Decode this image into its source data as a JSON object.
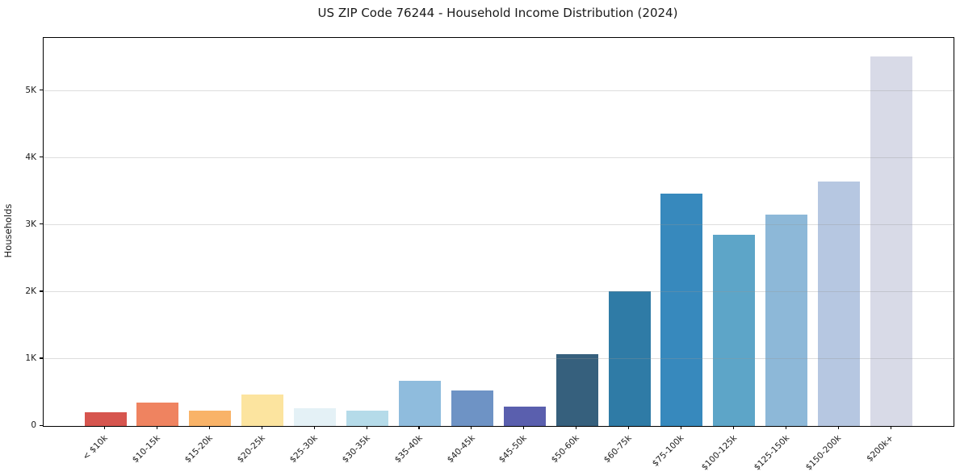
{
  "page": {
    "background": "#ffffff"
  },
  "chart_data": {
    "type": "bar",
    "title": "US ZIP Code 76244 - Household Income Distribution (2024)",
    "xlabel": "",
    "ylabel": "Households",
    "categories": [
      "< $10k",
      "$10-15k",
      "$15-20k",
      "$20-25k",
      "$25-30k",
      "$30-35k",
      "$35-40k",
      "$40-45k",
      "$45-50k",
      "$50-60k",
      "$60-75k",
      "$75-100k",
      "$100-125k",
      "$125-150k",
      "$150-200k",
      "$200k+"
    ],
    "values": [
      200,
      355,
      225,
      470,
      270,
      225,
      680,
      525,
      295,
      1070,
      2015,
      3470,
      2850,
      3155,
      3645,
      5510
    ],
    "bar_colors": [
      "#d6554e",
      "#ef8360",
      "#f9b368",
      "#fce49f",
      "#e4f1f6",
      "#b5dbe9",
      "#8fbcdd",
      "#6e93c5",
      "#5a5fae",
      "#36607d",
      "#2f7ba6",
      "#3789bd",
      "#5da5c8",
      "#8db8d8",
      "#b6c7e1",
      "#d8dae7"
    ],
    "ytick_values": [
      0,
      1000,
      2000,
      3000,
      4000,
      5000
    ],
    "ytick_labels": [
      "0",
      "1K",
      "2K",
      "3K",
      "4K",
      "5K"
    ],
    "ylim": [
      0,
      5790
    ],
    "grid": "horizontal",
    "grid_on": true,
    "legend": "none",
    "axis_color": "#000000",
    "text_color": "#1a1a1a"
  }
}
